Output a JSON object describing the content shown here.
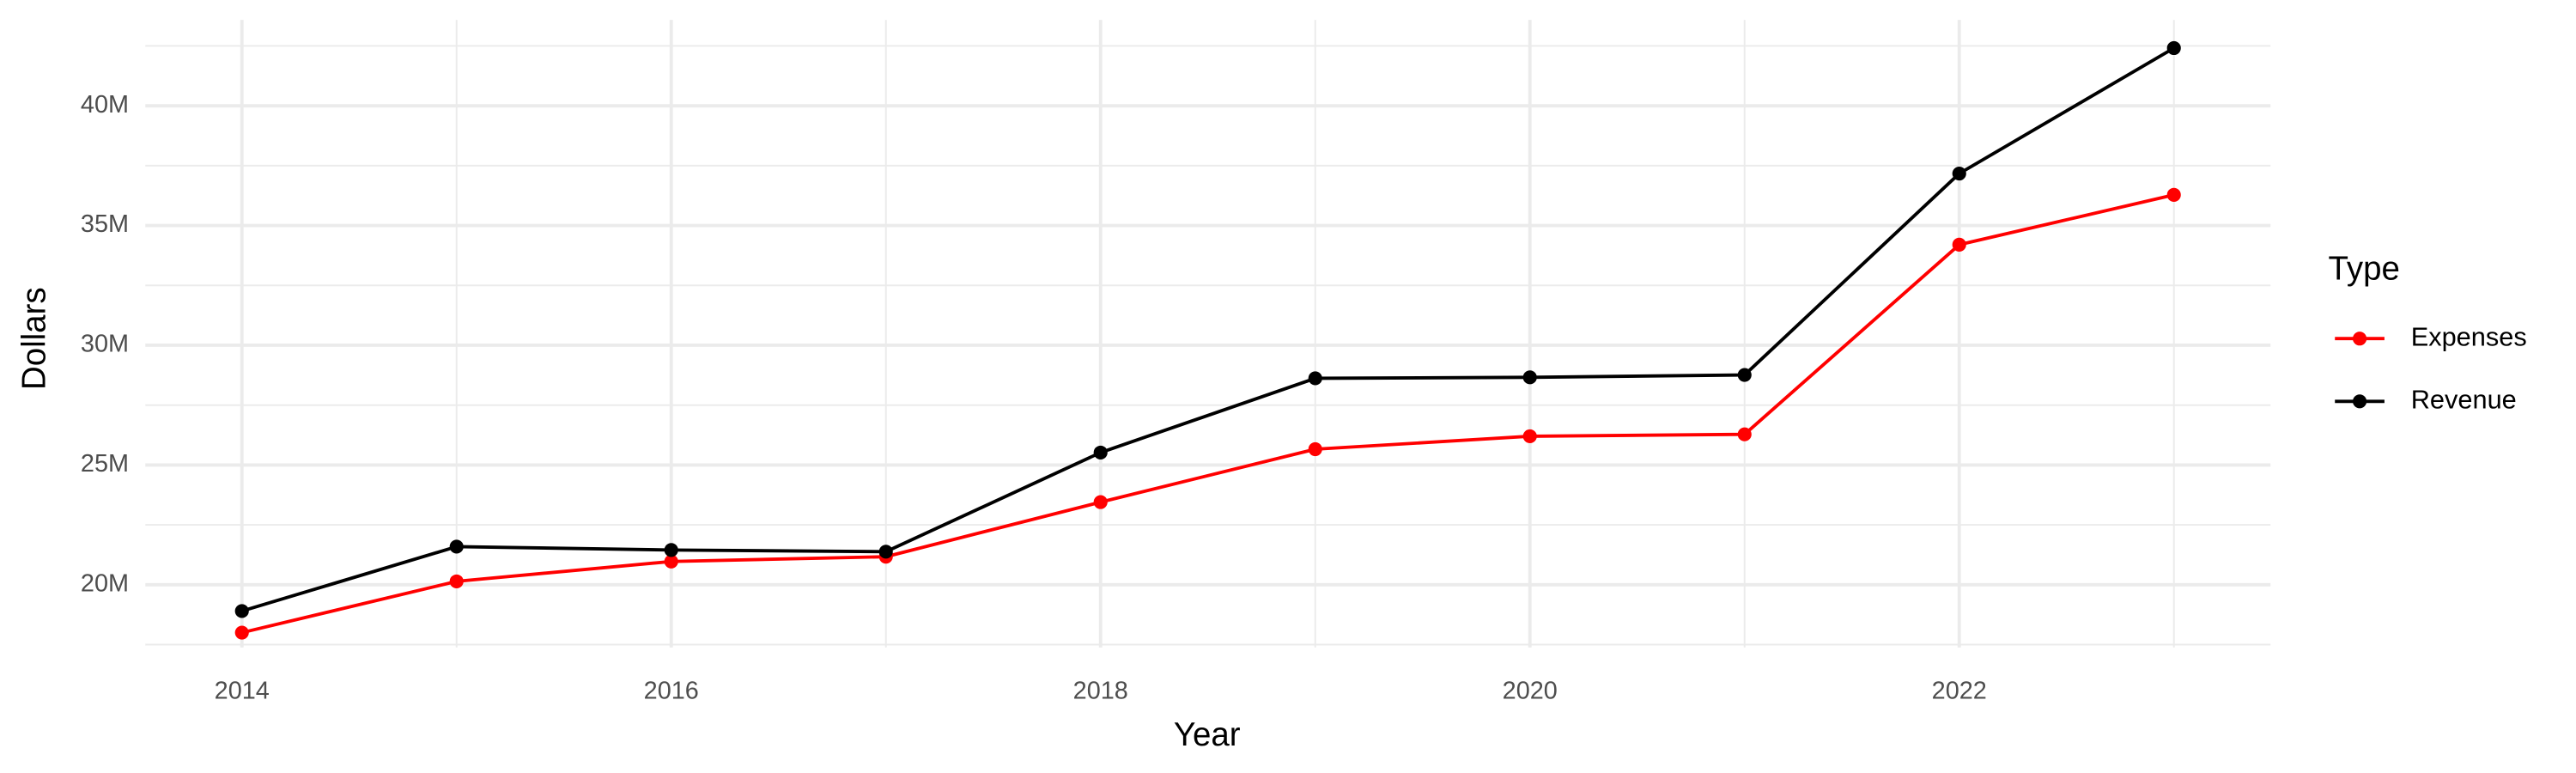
{
  "chart_data": {
    "type": "line",
    "x_label": "Year",
    "y_label": "Dollars",
    "x": [
      2014,
      2015,
      2016,
      2017,
      2018,
      2019,
      2020,
      2021,
      2022,
      2023
    ],
    "series": [
      {
        "name": "Expenses",
        "color": "#ff0000",
        "values": [
          18000000,
          20140000,
          20970000,
          21170000,
          23450000,
          25660000,
          26200000,
          26280000,
          34200000,
          36280000
        ]
      },
      {
        "name": "Revenue",
        "color": "#000000",
        "values": [
          18900000,
          21590000,
          21450000,
          21380000,
          25520000,
          28620000,
          28660000,
          28760000,
          37170000,
          42410000
        ]
      }
    ],
    "xlim": [
      2013.55,
      2023.45
    ],
    "xticks": [
      2014,
      2016,
      2018,
      2020,
      2022
    ],
    "x_minor_ticks": [
      2015,
      2017,
      2019,
      2021,
      2023
    ],
    "ylim": [
      17380000,
      43590000
    ],
    "yticks": [
      {
        "value": 20000000,
        "label": "20M"
      },
      {
        "value": 25000000,
        "label": "25M"
      },
      {
        "value": 30000000,
        "label": "30M"
      },
      {
        "value": 35000000,
        "label": "35M"
      },
      {
        "value": 40000000,
        "label": "40M"
      }
    ],
    "y_minor_ticks": [
      17500000,
      22500000,
      27500000,
      32500000,
      37500000,
      42500000
    ],
    "grid": true,
    "legend_title": "Type",
    "legend_position": "right"
  }
}
